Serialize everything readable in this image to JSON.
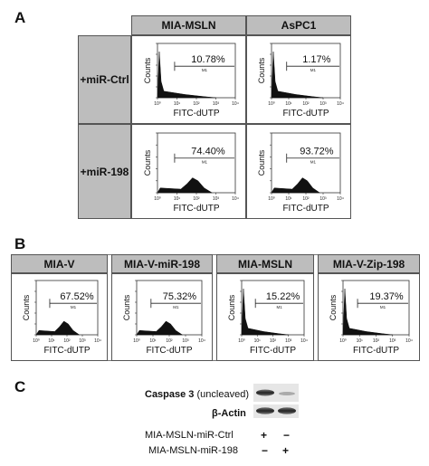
{
  "panels": {
    "A": {
      "letter": "A",
      "col_headers": [
        "MIA-MSLN",
        "AsPC1"
      ],
      "row_headers": [
        "+miR-Ctrl",
        "+miR-198"
      ],
      "plots": [
        {
          "id": "a11",
          "percent": "10.78%",
          "gate": "M1",
          "ylabel": "Counts",
          "xlabel": "FITC-dUTP",
          "peak": "low"
        },
        {
          "id": "a12",
          "percent": "1.17%",
          "gate": "M1",
          "ylabel": "Counts",
          "xlabel": "FITC-dUTP",
          "peak": "low"
        },
        {
          "id": "a21",
          "percent": "74.40%",
          "gate": "M1",
          "ylabel": "Counts",
          "xlabel": "FITC-dUTP",
          "peak": "mid"
        },
        {
          "id": "a22",
          "percent": "93.72%",
          "gate": "M1",
          "ylabel": "Counts",
          "xlabel": "FITC-dUTP",
          "peak": "mid"
        }
      ]
    },
    "B": {
      "letter": "B",
      "col_headers": [
        "MIA-V",
        "MIA-V-miR-198",
        "MIA-MSLN",
        "MIA-V-Zip-198"
      ],
      "plots": [
        {
          "id": "b1",
          "percent": "67.52%",
          "gate": "M1",
          "ylabel": "Counts",
          "xlabel": "FITC-dUTP",
          "peak": "mid"
        },
        {
          "id": "b2",
          "percent": "75.32%",
          "gate": "M1",
          "ylabel": "Counts",
          "xlabel": "FITC-dUTP",
          "peak": "mid"
        },
        {
          "id": "b3",
          "percent": "15.22%",
          "gate": "M1",
          "ylabel": "Counts",
          "xlabel": "FITC-dUTP",
          "peak": "low"
        },
        {
          "id": "b4",
          "percent": "19.37%",
          "gate": "M1",
          "ylabel": "Counts",
          "xlabel": "FITC-dUTP",
          "peak": "low"
        }
      ]
    },
    "C": {
      "letter": "C",
      "blot_labels": [
        "Caspase 3",
        "(uncleaved)",
        "β-Actin"
      ],
      "conditions": [
        {
          "label": "MIA-MSLN-miR-Ctrl",
          "marks": [
            "+",
            "−"
          ]
        },
        {
          "label": "MIA-MSLN-miR-198",
          "marks": [
            "−",
            "+"
          ]
        }
      ]
    }
  },
  "axis_ticks": [
    "10⁰",
    "10¹",
    "10²",
    "10³",
    "10⁴"
  ]
}
